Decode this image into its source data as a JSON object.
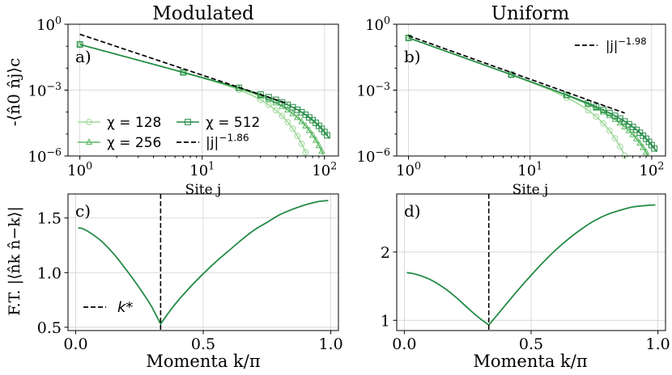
{
  "colors": {
    "chi128": "#9fd89a",
    "chi256": "#5cb866",
    "chi512": "#238b45",
    "ft": "#238b45",
    "fit": "#000000",
    "kstar": "#000000"
  },
  "chart_data": [
    {
      "id": "a",
      "type": "line",
      "panel_label": "a)",
      "title": "Modulated",
      "xlabel": "Site j",
      "ylabel": "-⟨n̂0 n̂j⟩c",
      "xscale": "log",
      "yscale": "log",
      "xlim": [
        0.8,
        130
      ],
      "ylim": [
        1e-06,
        1
      ],
      "xticks": [
        1,
        10,
        100
      ],
      "xtick_labels": [
        "10^0",
        "10^1",
        "10^2"
      ],
      "yticks": [
        1e-06,
        0.001,
        1
      ],
      "ytick_labels": [
        "10^-6",
        "10^-3",
        "10^0"
      ],
      "grid": true,
      "legend_position": "lower-left",
      "fit": {
        "label": "|j|^-1.86",
        "amplitude": 0.35,
        "exponent": -1.86,
        "x_range": [
          1,
          50
        ]
      },
      "series": [
        {
          "name": "χ = 128",
          "marker": "circle",
          "color_key": "chi128",
          "amplitude": 0.12,
          "exponent": -1.5,
          "x0": 35,
          "gamma": 2.3
        },
        {
          "name": "χ = 256",
          "marker": "triangle",
          "color_key": "chi256",
          "amplitude": 0.12,
          "exponent": -1.5,
          "x0": 50,
          "gamma": 2.3
        },
        {
          "name": "χ = 512",
          "marker": "square",
          "color_key": "chi512",
          "amplitude": 0.12,
          "exponent": -1.5,
          "x0": 70,
          "gamma": 2.3
        }
      ]
    },
    {
      "id": "b",
      "type": "line",
      "panel_label": "b)",
      "title": "Uniform",
      "xlabel": "Site j",
      "ylabel": "",
      "xscale": "log",
      "yscale": "log",
      "xlim": [
        0.8,
        130
      ],
      "ylim": [
        1e-06,
        1
      ],
      "xticks": [
        1,
        10,
        100
      ],
      "xtick_labels": [
        "10^0",
        "10^1",
        "10^2"
      ],
      "yticks": [
        1e-06,
        0.001,
        1
      ],
      "ytick_labels": [
        "10^-6",
        "10^-3",
        "10^0"
      ],
      "grid": true,
      "legend_position": "top-right",
      "fit": {
        "label": "|j|^-1.98",
        "amplitude": 0.3,
        "exponent": -1.98,
        "x_range": [
          1,
          60
        ]
      },
      "series": [
        {
          "name": "χ = 128",
          "marker": "circle",
          "color_key": "chi128",
          "amplitude": 0.24,
          "exponent": -1.98,
          "x0": 32,
          "gamma": 2.3
        },
        {
          "name": "χ = 256",
          "marker": "triangle",
          "color_key": "chi256",
          "amplitude": 0.24,
          "exponent": -1.98,
          "x0": 55,
          "gamma": 2.3
        },
        {
          "name": "χ = 512",
          "marker": "square",
          "color_key": "chi512",
          "amplitude": 0.24,
          "exponent": -1.98,
          "x0": 72,
          "gamma": 2.3
        }
      ]
    },
    {
      "id": "c",
      "type": "line",
      "panel_label": "c)",
      "xlabel": "Momenta k/π",
      "ylabel": "F.T. |⟨n̂k n̂−k⟩|",
      "xlim": [
        -0.03,
        1.03
      ],
      "ylim": [
        0.47,
        1.72
      ],
      "xticks": [
        0,
        0.5,
        1
      ],
      "xtick_labels": [
        "0.0",
        "0.5",
        "1.0"
      ],
      "yticks": [
        0.5,
        1.0,
        1.5
      ],
      "ytick_labels": [
        "0.5",
        "1.0",
        "1.5"
      ],
      "grid": true,
      "legend_position": "lower-left",
      "kstar": {
        "label": "k*",
        "value": 0.333
      },
      "curve": {
        "x": [
          0.01,
          0.03,
          0.06,
          0.1,
          0.15,
          0.2,
          0.25,
          0.3,
          0.333,
          0.36,
          0.4,
          0.45,
          0.5,
          0.55,
          0.6,
          0.65,
          0.7,
          0.75,
          0.8,
          0.85,
          0.9,
          0.95,
          0.99
        ],
        "y": [
          1.41,
          1.4,
          1.36,
          1.29,
          1.17,
          1.02,
          0.86,
          0.68,
          0.53,
          0.62,
          0.74,
          0.87,
          0.99,
          1.1,
          1.2,
          1.3,
          1.39,
          1.46,
          1.53,
          1.58,
          1.62,
          1.65,
          1.66
        ]
      }
    },
    {
      "id": "d",
      "type": "line",
      "panel_label": "d)",
      "xlabel": "Momenta k/π",
      "ylabel": "",
      "xlim": [
        -0.03,
        1.03
      ],
      "ylim": [
        0.85,
        2.85
      ],
      "xticks": [
        0,
        0.5,
        1
      ],
      "xtick_labels": [
        "0.0",
        "0.5",
        "1.0"
      ],
      "yticks": [
        1,
        2
      ],
      "ytick_labels": [
        "1",
        "2"
      ],
      "grid": true,
      "kstar": {
        "label": "",
        "value": 0.333
      },
      "curve": {
        "x": [
          0.01,
          0.05,
          0.1,
          0.15,
          0.2,
          0.25,
          0.3,
          0.333,
          0.36,
          0.4,
          0.45,
          0.5,
          0.55,
          0.6,
          0.65,
          0.7,
          0.75,
          0.8,
          0.85,
          0.9,
          0.95,
          0.99
        ],
        "y": [
          1.7,
          1.67,
          1.6,
          1.49,
          1.35,
          1.18,
          1.02,
          0.93,
          1.05,
          1.23,
          1.45,
          1.66,
          1.86,
          2.04,
          2.2,
          2.34,
          2.46,
          2.55,
          2.61,
          2.66,
          2.68,
          2.69
        ]
      }
    }
  ]
}
